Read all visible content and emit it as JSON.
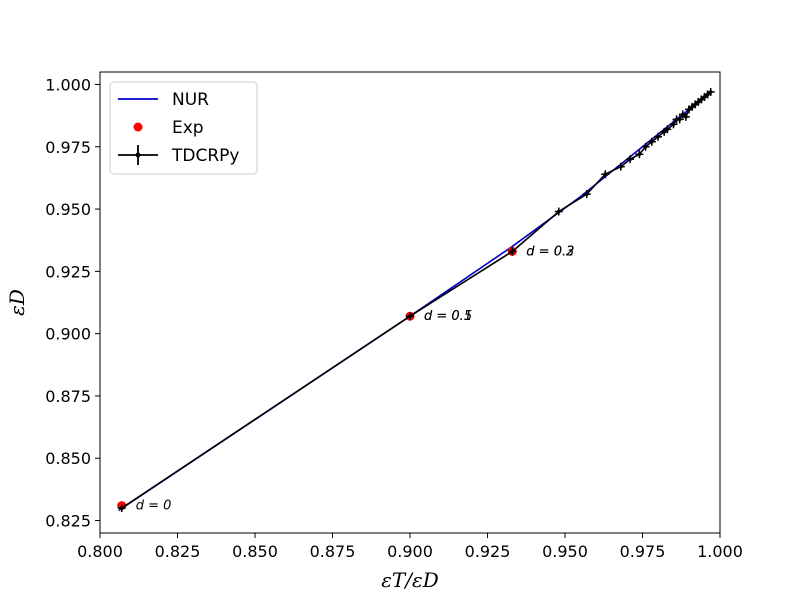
{
  "chart_data": {
    "type": "line",
    "xlabel": "εT/εD",
    "ylabel": "εD",
    "xlim": [
      0.8,
      1.0
    ],
    "ylim": [
      0.82,
      1.005
    ],
    "x_ticks": [
      "0.800",
      "0.825",
      "0.850",
      "0.875",
      "0.900",
      "0.925",
      "0.950",
      "0.975",
      "1.000"
    ],
    "y_ticks": [
      "0.825",
      "0.850",
      "0.875",
      "0.900",
      "0.925",
      "0.950",
      "0.975",
      "1.000"
    ],
    "x_tick_values": [
      0.8,
      0.825,
      0.85,
      0.875,
      0.9,
      0.925,
      0.95,
      0.975,
      1.0
    ],
    "y_tick_values": [
      0.825,
      0.85,
      0.875,
      0.9,
      0.925,
      0.95,
      0.975,
      1.0
    ],
    "grid": false,
    "legend_position": "top-left",
    "series": [
      {
        "name": "NUR",
        "kind": "line",
        "color": "#0000cc",
        "points": [
          [
            0.806,
            0.829
          ],
          [
            0.9,
            0.907
          ],
          [
            0.933,
            0.935
          ],
          [
            0.955,
            0.955
          ],
          [
            0.965,
            0.965
          ],
          [
            0.98,
            0.98
          ],
          [
            0.997,
            0.997
          ]
        ]
      },
      {
        "name": "Exp",
        "kind": "scatter",
        "color": "#ff0000",
        "points": [
          [
            0.807,
            0.831
          ],
          [
            0.9,
            0.907
          ],
          [
            0.933,
            0.933
          ]
        ]
      },
      {
        "name": "TDCRPy",
        "kind": "errorbar-line",
        "color": "#000000",
        "points": [
          [
            0.807,
            0.83
          ],
          [
            0.9,
            0.907
          ],
          [
            0.933,
            0.933
          ],
          [
            0.948,
            0.949
          ],
          [
            0.957,
            0.956
          ],
          [
            0.963,
            0.964
          ],
          [
            0.968,
            0.967
          ],
          [
            0.971,
            0.97
          ],
          [
            0.974,
            0.972
          ],
          [
            0.976,
            0.975
          ],
          [
            0.978,
            0.977
          ],
          [
            0.98,
            0.979
          ],
          [
            0.982,
            0.981
          ],
          [
            0.983,
            0.982
          ],
          [
            0.985,
            0.984
          ],
          [
            0.986,
            0.986
          ],
          [
            0.987,
            0.986
          ],
          [
            0.988,
            0.988
          ],
          [
            0.989,
            0.987
          ],
          [
            0.99,
            0.99
          ],
          [
            0.991,
            0.991
          ],
          [
            0.992,
            0.992
          ],
          [
            0.993,
            0.993
          ],
          [
            0.994,
            0.994
          ],
          [
            0.995,
            0.995
          ],
          [
            0.996,
            0.996
          ],
          [
            0.997,
            0.997
          ]
        ]
      }
    ],
    "annotations": [
      {
        "text": "d = 0",
        "x": 0.807,
        "y": 0.831
      },
      {
        "text": "d = 0.5",
        "x": 0.9,
        "y": 0.907
      },
      {
        "text": "d = 0.1",
        "x": 0.9,
        "y": 0.907
      },
      {
        "text": "d = 0.2",
        "x": 0.933,
        "y": 0.933
      },
      {
        "text": "d = 0.3",
        "x": 0.933,
        "y": 0.933
      }
    ]
  }
}
